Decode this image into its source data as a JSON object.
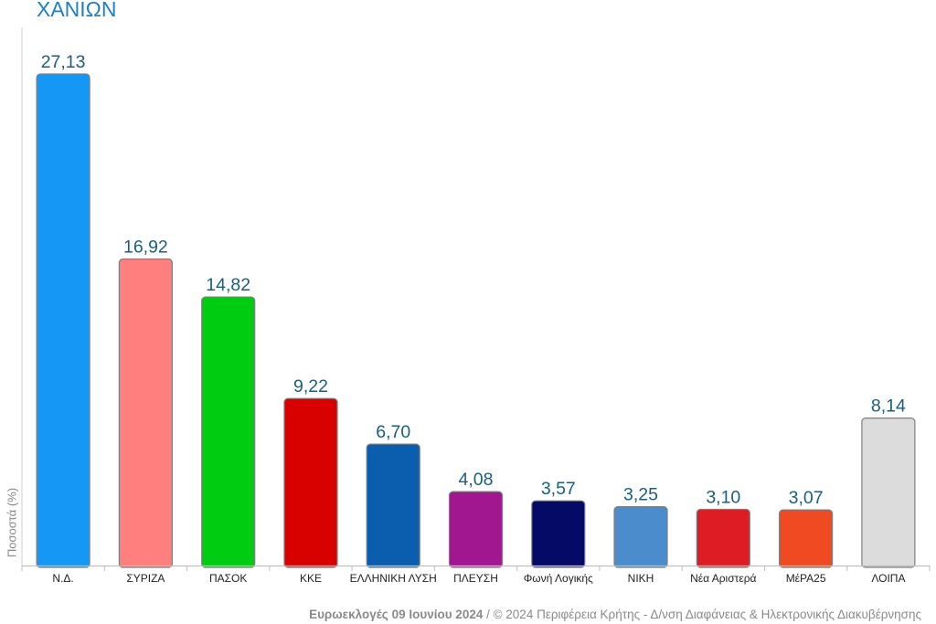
{
  "chart_data": {
    "type": "bar",
    "title": "ΧΑΝΙΩΝ",
    "ylabel": "Ποσοστά (%)",
    "xlabel": "",
    "categories": [
      "Ν.Δ.",
      "ΣΥΡΙΖΑ",
      "ΠΑΣΟΚ",
      "ΚΚΕ",
      "ΕΛΛΗΝΙΚΗ ΛΥΣΗ",
      "ΠΛΕΥΣΗ",
      "Φωνή Λογικής",
      "ΝΙΚΗ",
      "Νέα Αριστερά",
      "ΜέΡΑ25",
      "ΛΟΙΠΑ"
    ],
    "values": [
      27.13,
      16.92,
      14.82,
      9.22,
      6.7,
      4.08,
      3.57,
      3.25,
      3.1,
      3.07,
      8.14
    ],
    "value_labels": [
      "27,13",
      "16,92",
      "14,82",
      "9,22",
      "6,70",
      "4,08",
      "3,57",
      "3,25",
      "3,10",
      "3,07",
      "8,14"
    ],
    "colors": [
      "#1597f5",
      "#ff7f7f",
      "#00cc11",
      "#d90000",
      "#0a5ead",
      "#a0178f",
      "#050a66",
      "#4a8ccc",
      "#dd1c24",
      "#f04a23",
      "#dcdcdc"
    ],
    "ylim": [
      0,
      27.13
    ],
    "grid": false,
    "legend": "none"
  },
  "footer": {
    "bold": "Ευρωεκλογές 09 Ιουνίου 2024",
    "rest": " / © 2024 Περιφέρεια Κρήτης - Δ/νση Διαφάνειας & Ηλεκτρονικής Διακυβέρνησης"
  }
}
